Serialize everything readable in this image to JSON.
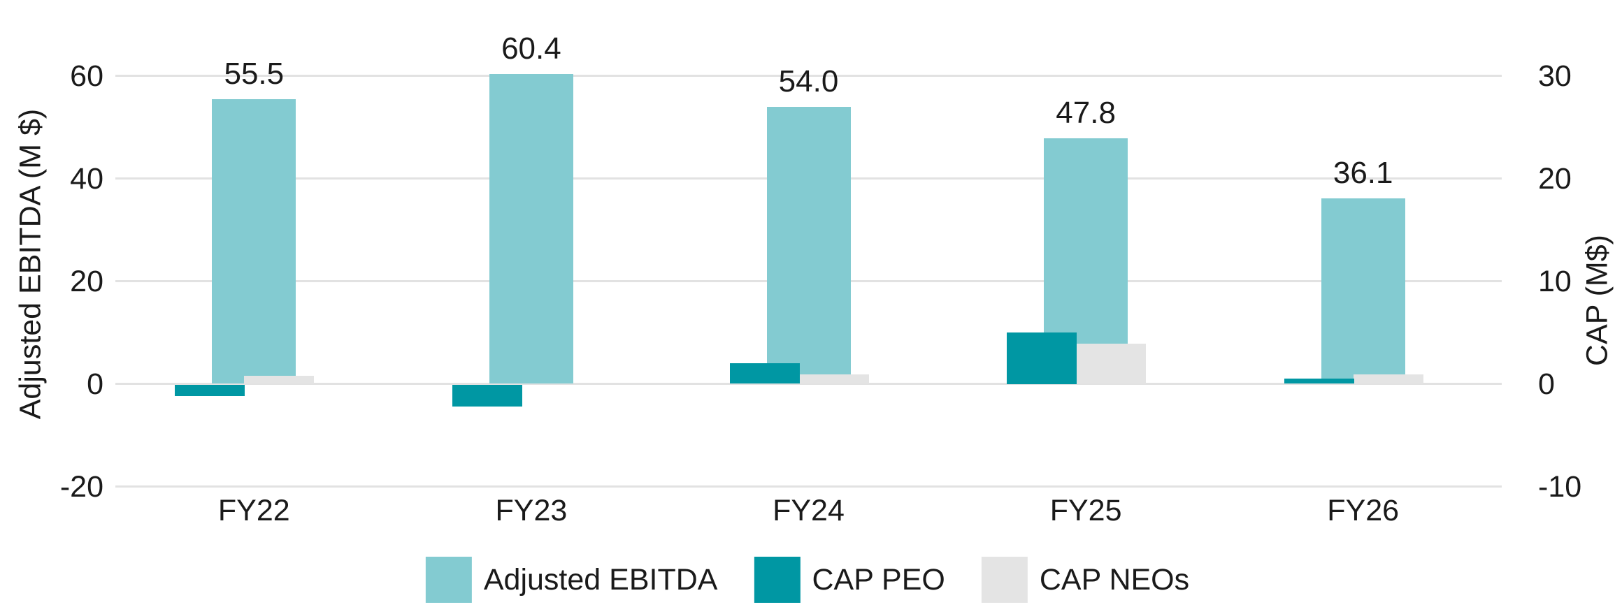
{
  "chart_data": {
    "type": "bar",
    "title": "",
    "categories": [
      "FY22",
      "FY23",
      "FY24",
      "FY25",
      "FY26"
    ],
    "series": [
      {
        "name": "Adjusted EBITDA",
        "axis": "left",
        "color": "#83cbd1",
        "values": [
          55.5,
          60.4,
          54.0,
          47.8,
          36.1
        ],
        "data_labels": [
          "55.5",
          "60.4",
          "54.0",
          "47.8",
          "36.1"
        ]
      },
      {
        "name": "CAP PEO",
        "axis": "right",
        "color": "#0097a3",
        "values": [
          -1.1,
          -2.1,
          2.0,
          5.0,
          0.5
        ]
      },
      {
        "name": "CAP NEOs",
        "axis": "right",
        "color": "#e4e4e4",
        "values": [
          0.8,
          0.0,
          0.9,
          3.9,
          0.9
        ]
      }
    ],
    "left_axis": {
      "label": "Adjusted EBITDA (M $)",
      "ticks": [
        60,
        40,
        20,
        0,
        -20
      ],
      "range": [
        -20,
        66
      ]
    },
    "right_axis": {
      "label": "CAP (M$)",
      "ticks": [
        30,
        20,
        10,
        0,
        -10
      ],
      "range": [
        -10,
        33
      ]
    },
    "legend": {
      "position": "bottom",
      "entries": [
        "Adjusted EBITDA",
        "CAP PEO",
        "CAP NEOs"
      ]
    },
    "grid": true,
    "background_color": "#ffffff",
    "gridline_color": "#e2e2e2",
    "text_color": "#1a1a1a"
  }
}
